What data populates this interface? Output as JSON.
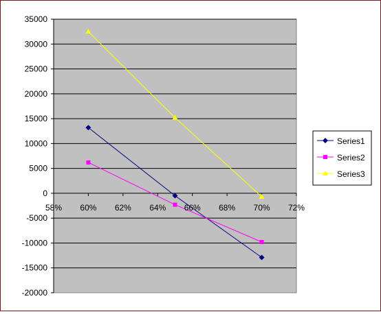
{
  "chart_data": {
    "type": "line",
    "x": [
      0.6,
      0.65,
      0.7
    ],
    "xlim": [
      0.58,
      0.72
    ],
    "xticks": [
      0.58,
      0.6,
      0.62,
      0.64,
      0.66,
      0.68,
      0.7,
      0.72
    ],
    "xtick_labels": [
      "58%",
      "60%",
      "62%",
      "64%",
      "66%",
      "68%",
      "70%",
      "72%"
    ],
    "ylim": [
      -20000,
      35000
    ],
    "yticks": [
      -20000,
      -15000,
      -10000,
      -5000,
      0,
      5000,
      10000,
      15000,
      20000,
      25000,
      30000,
      35000
    ],
    "ytick_labels": [
      "-20000",
      "-15000",
      "-10000",
      "-5000",
      "0",
      "5000",
      "10000",
      "15000",
      "20000",
      "25000",
      "30000",
      "35000"
    ],
    "grid": "horizontal",
    "plot_background": "#c0c0c0",
    "legend_position": "right",
    "series": [
      {
        "name": "Series1",
        "values": [
          13200,
          -500,
          -12900
        ],
        "color": "#000080",
        "marker": "diamond"
      },
      {
        "name": "Series2",
        "values": [
          6200,
          -2300,
          -9800
        ],
        "color": "#ff00ff",
        "marker": "square"
      },
      {
        "name": "Series3",
        "values": [
          32500,
          15200,
          -700
        ],
        "color": "#ffff00",
        "marker": "triangle"
      }
    ]
  }
}
